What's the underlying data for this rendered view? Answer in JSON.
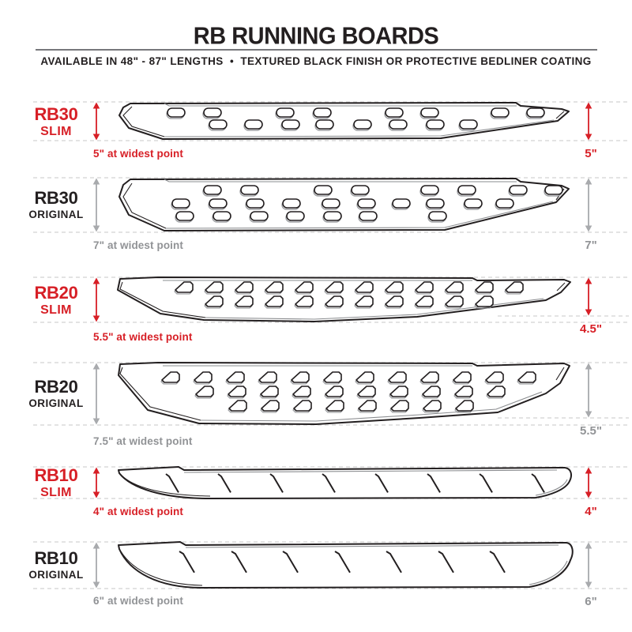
{
  "header": {
    "title": "RB RUNNING BOARDS",
    "subtitle": "AVAILABLE IN 48\" - 87\" LENGTHS  •  TEXTURED BLACK FINISH OR PROTECTIVE BEDLINER COATING"
  },
  "colors": {
    "accent_red": "#d71f26",
    "dim_gray": "#a8aaad",
    "caption_gray": "#919396",
    "ink": "#231f20",
    "dash_gray": "#d2d2d2"
  },
  "products": [
    {
      "model": "RB30",
      "variant": "SLIM",
      "theme": "red",
      "widest_caption": "5\" at widest point",
      "height_label": "5\"",
      "pattern": "oval-slots"
    },
    {
      "model": "RB30",
      "variant": "ORIGINAL",
      "theme": "gray",
      "widest_caption": "7\" at widest point",
      "height_label": "7\"",
      "pattern": "oval-slots"
    },
    {
      "model": "RB20",
      "variant": "SLIM",
      "theme": "red",
      "widest_caption": "5.5\" at widest point",
      "height_label": "4.5\"",
      "pattern": "teardrop-slots"
    },
    {
      "model": "RB20",
      "variant": "ORIGINAL",
      "theme": "gray",
      "widest_caption": "7.5\" at widest point",
      "height_label": "5.5\"",
      "pattern": "teardrop-slots"
    },
    {
      "model": "RB10",
      "variant": "SLIM",
      "theme": "red",
      "widest_caption": "4\" at widest point",
      "height_label": "4\"",
      "pattern": "slash-treads"
    },
    {
      "model": "RB10",
      "variant": "ORIGINAL",
      "theme": "gray",
      "widest_caption": "6\" at widest point",
      "height_label": "6\"",
      "pattern": "slash-treads"
    }
  ]
}
